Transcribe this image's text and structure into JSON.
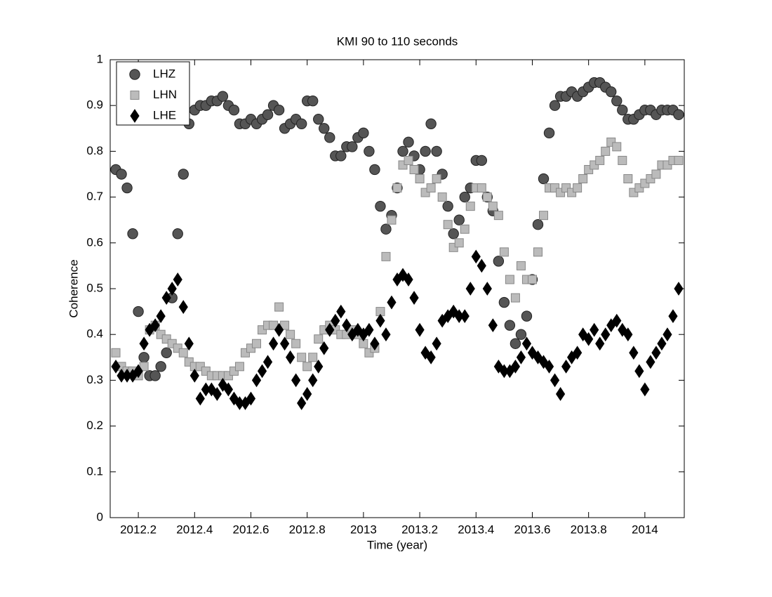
{
  "chart_data": {
    "type": "scatter",
    "title": "KMI 90 to 110 seconds",
    "xlabel": "Time (year)",
    "ylabel": "Coherence",
    "xlim": [
      2012.1,
      2014.14
    ],
    "ylim": [
      0,
      1
    ],
    "xticks": [
      2012.2,
      2012.4,
      2012.6,
      2012.8,
      2013,
      2013.2,
      2013.4,
      2013.6,
      2013.8,
      2014
    ],
    "yticks": [
      0,
      0.1,
      0.2,
      0.3,
      0.4,
      0.5,
      0.6,
      0.7,
      0.8,
      0.9,
      1
    ],
    "grid": false,
    "legend": "upper left",
    "x": [
      2012.12,
      2012.14,
      2012.16,
      2012.18,
      2012.2,
      2012.22,
      2012.24,
      2012.26,
      2012.28,
      2012.3,
      2012.32,
      2012.34,
      2012.36,
      2012.38,
      2012.4,
      2012.42,
      2012.44,
      2012.46,
      2012.48,
      2012.5,
      2012.52,
      2012.54,
      2012.56,
      2012.58,
      2012.6,
      2012.62,
      2012.64,
      2012.66,
      2012.68,
      2012.7,
      2012.72,
      2012.74,
      2012.76,
      2012.78,
      2012.8,
      2012.82,
      2012.84,
      2012.86,
      2012.88,
      2012.9,
      2012.92,
      2012.94,
      2012.96,
      2012.98,
      2013.0,
      2013.02,
      2013.04,
      2013.06,
      2013.08,
      2013.1,
      2013.12,
      2013.14,
      2013.16,
      2013.18,
      2013.2,
      2013.22,
      2013.24,
      2013.26,
      2013.28,
      2013.3,
      2013.32,
      2013.34,
      2013.36,
      2013.38,
      2013.4,
      2013.42,
      2013.44,
      2013.46,
      2013.48,
      2013.5,
      2013.52,
      2013.54,
      2013.56,
      2013.58,
      2013.6,
      2013.62,
      2013.64,
      2013.66,
      2013.68,
      2013.7,
      2013.72,
      2013.74,
      2013.76,
      2013.78,
      2013.8,
      2013.82,
      2013.84,
      2013.86,
      2013.88,
      2013.9,
      2013.92,
      2013.94,
      2013.96,
      2013.98,
      2014.0,
      2014.02,
      2014.04,
      2014.06,
      2014.08,
      2014.1,
      2014.12
    ],
    "series": [
      {
        "name": "LHZ",
        "marker": "circle",
        "color": "#555555",
        "edge": "#222222",
        "values": [
          0.76,
          0.75,
          0.72,
          0.62,
          0.45,
          0.35,
          0.31,
          0.31,
          0.33,
          0.36,
          0.48,
          0.62,
          0.75,
          0.86,
          0.89,
          0.9,
          0.9,
          0.91,
          0.91,
          0.92,
          0.9,
          0.89,
          0.86,
          0.86,
          0.87,
          0.86,
          0.87,
          0.88,
          0.9,
          0.89,
          0.85,
          0.86,
          0.87,
          0.86,
          0.91,
          0.91,
          0.87,
          0.85,
          0.83,
          0.79,
          0.79,
          0.81,
          0.81,
          0.83,
          0.84,
          0.8,
          0.76,
          0.68,
          0.63,
          0.66,
          0.72,
          0.8,
          0.82,
          0.79,
          0.76,
          0.8,
          0.86,
          0.8,
          0.75,
          0.68,
          0.62,
          0.65,
          0.7,
          0.72,
          0.78,
          0.78,
          0.7,
          0.67,
          0.56,
          0.47,
          0.42,
          0.38,
          0.4,
          0.44,
          0.52,
          0.64,
          0.74,
          0.84,
          0.9,
          0.92,
          0.92,
          0.93,
          0.92,
          0.93,
          0.94,
          0.95,
          0.95,
          0.94,
          0.93,
          0.91,
          0.89,
          0.87,
          0.87,
          0.88,
          0.89,
          0.89,
          0.88,
          0.89,
          0.89,
          0.89,
          0.88
        ]
      },
      {
        "name": "LHN",
        "marker": "square",
        "color": "#bbbbbb",
        "edge": "#888888",
        "values": [
          0.36,
          0.33,
          0.32,
          0.32,
          0.31,
          0.33,
          0.41,
          0.42,
          0.4,
          0.39,
          0.38,
          0.37,
          0.36,
          0.34,
          0.33,
          0.33,
          0.32,
          0.31,
          0.31,
          0.31,
          0.31,
          0.32,
          0.33,
          0.36,
          0.37,
          0.38,
          0.41,
          0.42,
          0.42,
          0.46,
          0.42,
          0.4,
          0.38,
          0.35,
          0.33,
          0.35,
          0.39,
          0.41,
          0.42,
          0.41,
          0.4,
          0.4,
          0.41,
          0.4,
          0.38,
          0.36,
          0.37,
          0.45,
          0.57,
          0.65,
          0.72,
          0.77,
          0.78,
          0.76,
          0.74,
          0.71,
          0.72,
          0.74,
          0.7,
          0.64,
          0.59,
          0.6,
          0.63,
          0.68,
          0.72,
          0.72,
          0.7,
          0.68,
          0.66,
          0.58,
          0.52,
          0.48,
          0.55,
          0.52,
          0.52,
          0.58,
          0.66,
          0.72,
          0.72,
          0.71,
          0.72,
          0.71,
          0.72,
          0.74,
          0.76,
          0.77,
          0.78,
          0.8,
          0.82,
          0.81,
          0.78,
          0.74,
          0.71,
          0.72,
          0.73,
          0.74,
          0.75,
          0.77,
          0.77,
          0.78,
          0.78
        ]
      },
      {
        "name": "LHE",
        "marker": "diamond",
        "color": "#000000",
        "edge": "#000000",
        "values": [
          0.33,
          0.31,
          0.31,
          0.31,
          0.32,
          0.38,
          0.41,
          0.42,
          0.44,
          0.48,
          0.5,
          0.52,
          0.46,
          0.38,
          0.31,
          0.26,
          0.28,
          0.28,
          0.27,
          0.29,
          0.28,
          0.26,
          0.25,
          0.25,
          0.26,
          0.3,
          0.32,
          0.34,
          0.38,
          0.41,
          0.38,
          0.35,
          0.3,
          0.25,
          0.27,
          0.3,
          0.33,
          0.37,
          0.41,
          0.43,
          0.45,
          0.42,
          0.4,
          0.41,
          0.4,
          0.41,
          0.38,
          0.43,
          0.4,
          0.47,
          0.52,
          0.53,
          0.52,
          0.48,
          0.41,
          0.36,
          0.35,
          0.38,
          0.43,
          0.44,
          0.45,
          0.44,
          0.44,
          0.5,
          0.57,
          0.55,
          0.5,
          0.42,
          0.33,
          0.32,
          0.32,
          0.33,
          0.35,
          0.38,
          0.36,
          0.35,
          0.34,
          0.33,
          0.3,
          0.27,
          0.33,
          0.35,
          0.36,
          0.4,
          0.39,
          0.41,
          0.38,
          0.4,
          0.42,
          0.43,
          0.41,
          0.4,
          0.36,
          0.32,
          0.28,
          0.34,
          0.36,
          0.38,
          0.4,
          0.44,
          0.5
        ]
      }
    ]
  }
}
